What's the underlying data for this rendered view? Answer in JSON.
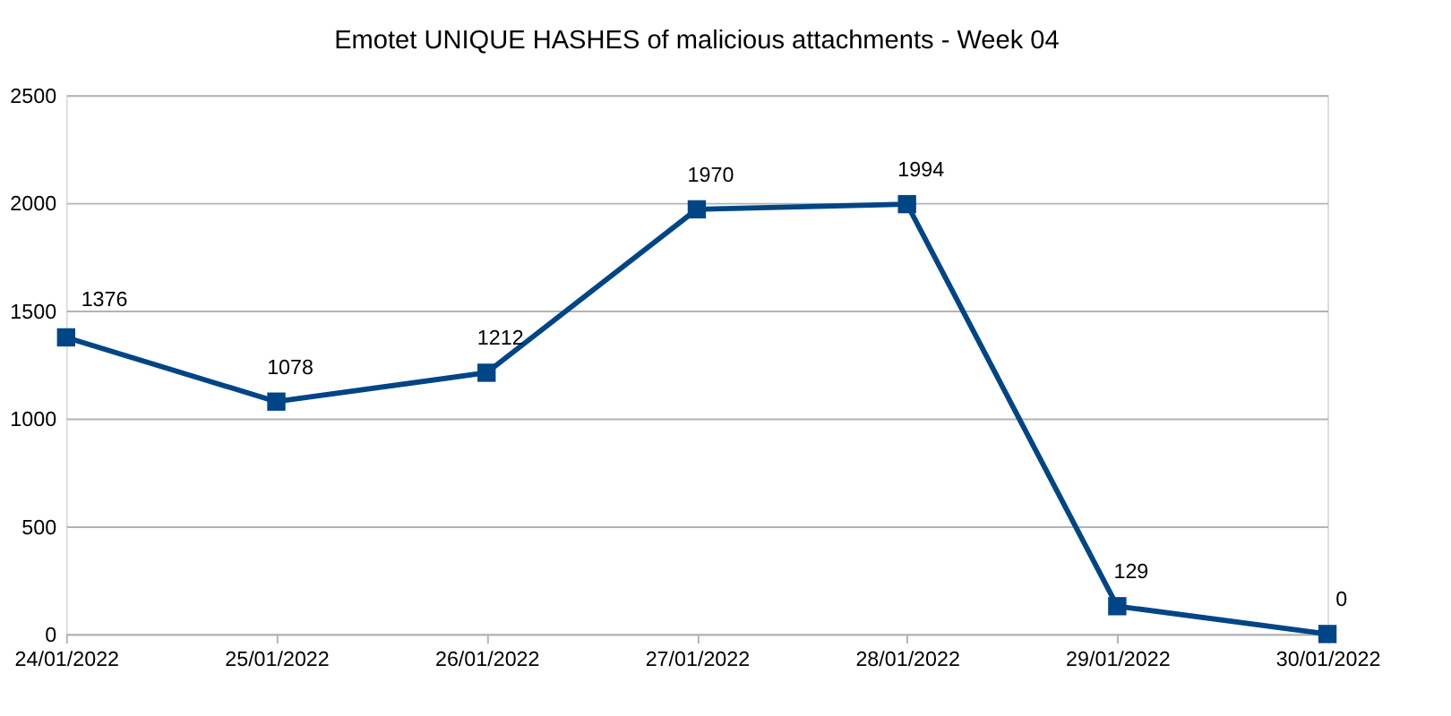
{
  "chart_data": {
    "type": "line",
    "title": "Emotet UNIQUE HASHES of malicious attachments - Week 04",
    "categories": [
      "24/01/2022",
      "25/01/2022",
      "26/01/2022",
      "27/01/2022",
      "28/01/2022",
      "29/01/2022",
      "30/01/2022"
    ],
    "series": [
      {
        "color": "#004586",
        "values": [
          1376,
          1078,
          1212,
          1970,
          1994,
          129,
          0
        ]
      }
    ],
    "ylim": [
      0,
      2500
    ],
    "yticks": [
      0,
      500,
      1000,
      1500,
      2000,
      2500
    ],
    "grid": "y",
    "marker": "square",
    "line_style": "solid",
    "data_labels": true
  }
}
